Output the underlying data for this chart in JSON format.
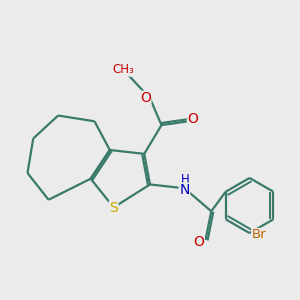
{
  "bg_color": "#ebebeb",
  "bond_color": "#3a7a6a",
  "bond_width": 1.6,
  "dbo": 0.055,
  "atom_colors": {
    "S": "#ccaa00",
    "O": "#cc0000",
    "N": "#0000bb",
    "Br": "#bb6600",
    "C": "#3a7a6a"
  },
  "font_size": 10
}
